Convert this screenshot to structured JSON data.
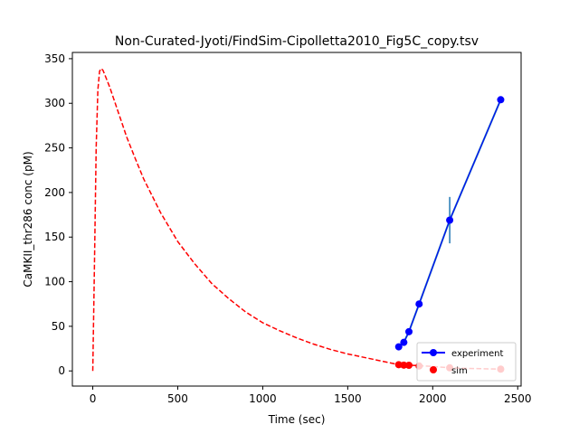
{
  "chart_data": {
    "type": "line",
    "title": "Non-Curated-Jyoti/FindSim-Cipolletta2010_Fig5C_copy.tsv",
    "xlabel": "Time (sec)",
    "ylabel": "CaMKII_thr286 conc (pM)",
    "xlim": [
      -120,
      2520
    ],
    "ylim": [
      -17,
      357
    ],
    "x_ticks": [
      0,
      500,
      1000,
      1500,
      2000,
      2500
    ],
    "y_ticks": [
      0,
      50,
      100,
      150,
      200,
      250,
      300,
      350
    ],
    "grid": false,
    "legend_position": "lower-right",
    "colors": {
      "experiment": "#0000ff",
      "experiment_fit": "#1f77b4",
      "sim": "#ff0000",
      "sim_curve": "#ff0000"
    },
    "series": [
      {
        "name": "experiment",
        "style": "line-marker",
        "x": [
          1800,
          1830,
          1860,
          1920,
          2100,
          2400
        ],
        "y": [
          27,
          32,
          44,
          75,
          169,
          304
        ],
        "error": [
          0,
          0,
          0,
          0,
          26,
          0
        ]
      },
      {
        "name": "sim",
        "style": "marker",
        "x": [
          1800,
          1830,
          1860,
          1920,
          2100,
          2400
        ],
        "y": [
          7,
          6.5,
          6.3,
          5.5,
          3.5,
          2
        ]
      }
    ],
    "sim_curve": {
      "style": "dashed",
      "x": [
        0,
        10,
        20,
        30,
        40,
        50,
        60,
        75,
        100,
        150,
        200,
        250,
        300,
        400,
        500,
        600,
        700,
        800,
        900,
        1000,
        1100,
        1200,
        1300,
        1400,
        1500,
        1600,
        1700,
        1800,
        1900,
        2000,
        2100,
        2200,
        2300,
        2400
      ],
      "y": [
        0,
        120,
        250,
        315,
        336,
        339,
        337,
        330,
        318,
        290,
        262,
        238,
        215,
        177,
        145,
        120,
        98,
        81,
        66,
        54,
        45,
        37,
        30,
        24,
        19,
        15,
        11,
        7,
        6,
        5,
        3.5,
        2.8,
        2.4,
        2
      ]
    }
  }
}
